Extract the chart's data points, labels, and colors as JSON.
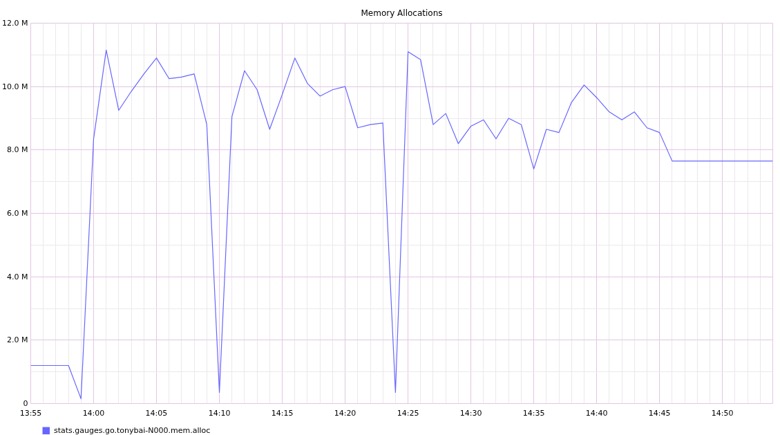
{
  "chart_data": {
    "type": "line",
    "title": "Memory Allocations",
    "x": [
      13.9167,
      13.9333,
      13.95,
      13.9667,
      13.9833,
      14,
      14.0167,
      14.0333,
      14.05,
      14.0667,
      14.0833,
      14.1,
      14.1167,
      14.1333,
      14.15,
      14.1667,
      14.1833,
      14.2,
      14.2167,
      14.2333,
      14.25,
      14.2667,
      14.2833,
      14.3,
      14.3167,
      14.3333,
      14.35,
      14.3667,
      14.3833,
      14.4,
      14.4167,
      14.4333,
      14.45,
      14.4667,
      14.4833,
      14.5,
      14.5167,
      14.5333,
      14.55,
      14.5667,
      14.5833,
      14.6,
      14.6167,
      14.6333,
      14.65,
      14.6667,
      14.6833,
      14.7,
      14.7167,
      14.7333,
      14.75,
      14.7667,
      14.7833,
      14.8,
      14.8167,
      14.8333,
      14.85,
      14.8667,
      14.8833,
      14.9
    ],
    "series": [
      {
        "name": "stats.gauges.go.tonybai-N000.mem.alloc",
        "color": "#6666ff",
        "values": [
          1200000,
          1200000,
          1200000,
          1200000,
          150000,
          8350000,
          11150000,
          9250000,
          9850000,
          10400000,
          10900000,
          10250000,
          10300000,
          10400000,
          8800000,
          350000,
          9050000,
          10500000,
          9900000,
          8650000,
          9750000,
          10900000,
          10100000,
          9700000,
          9900000,
          10000000,
          8700000,
          8800000,
          8850000,
          350000,
          11100000,
          10850000,
          8800000,
          9150000,
          8200000,
          8750000,
          8950000,
          8350000,
          9000000,
          8800000,
          7400000,
          8650000,
          8550000,
          9500000,
          10050000,
          9650000,
          9200000,
          8950000,
          9200000,
          8700000,
          8550000,
          7650000,
          7650000,
          7650000,
          7650000,
          7650000,
          7650000,
          7650000,
          7650000,
          7650000
        ]
      }
    ],
    "xlim": [
      13.9167,
      14.9
    ],
    "xticks": [
      {
        "value": 13.9167,
        "label": "13:55"
      },
      {
        "value": 13.9333,
        "label": null
      },
      {
        "value": 13.95,
        "label": null
      },
      {
        "value": 13.9667,
        "label": null
      },
      {
        "value": 13.9833,
        "label": null
      },
      {
        "value": 14,
        "label": "14:00"
      },
      {
        "value": 14.0167,
        "label": null
      },
      {
        "value": 14.0333,
        "label": null
      },
      {
        "value": 14.05,
        "label": null
      },
      {
        "value": 14.0667,
        "label": null
      },
      {
        "value": 14.0833,
        "label": "14:05"
      },
      {
        "value": 14.1,
        "label": null
      },
      {
        "value": 14.1167,
        "label": null
      },
      {
        "value": 14.1333,
        "label": null
      },
      {
        "value": 14.15,
        "label": null
      },
      {
        "value": 14.1667,
        "label": "14:10"
      },
      {
        "value": 14.1833,
        "label": null
      },
      {
        "value": 14.2,
        "label": null
      },
      {
        "value": 14.2167,
        "label": null
      },
      {
        "value": 14.2333,
        "label": null
      },
      {
        "value": 14.25,
        "label": "14:15"
      },
      {
        "value": 14.2667,
        "label": null
      },
      {
        "value": 14.2833,
        "label": null
      },
      {
        "value": 14.3,
        "label": null
      },
      {
        "value": 14.3167,
        "label": null
      },
      {
        "value": 14.3333,
        "label": "14:20"
      },
      {
        "value": 14.35,
        "label": null
      },
      {
        "value": 14.3667,
        "label": null
      },
      {
        "value": 14.3833,
        "label": null
      },
      {
        "value": 14.4,
        "label": null
      },
      {
        "value": 14.4167,
        "label": "14:25"
      },
      {
        "value": 14.4333,
        "label": null
      },
      {
        "value": 14.45,
        "label": null
      },
      {
        "value": 14.4667,
        "label": null
      },
      {
        "value": 14.4833,
        "label": null
      },
      {
        "value": 14.5,
        "label": "14:30"
      },
      {
        "value": 14.5167,
        "label": null
      },
      {
        "value": 14.5333,
        "label": null
      },
      {
        "value": 14.55,
        "label": null
      },
      {
        "value": 14.5667,
        "label": null
      },
      {
        "value": 14.5833,
        "label": "14:35"
      },
      {
        "value": 14.6,
        "label": null
      },
      {
        "value": 14.6167,
        "label": null
      },
      {
        "value": 14.6333,
        "label": null
      },
      {
        "value": 14.65,
        "label": null
      },
      {
        "value": 14.6667,
        "label": "14:40"
      },
      {
        "value": 14.6833,
        "label": null
      },
      {
        "value": 14.7,
        "label": null
      },
      {
        "value": 14.7167,
        "label": null
      },
      {
        "value": 14.7333,
        "label": null
      },
      {
        "value": 14.75,
        "label": "14:45"
      },
      {
        "value": 14.7667,
        "label": null
      },
      {
        "value": 14.7833,
        "label": null
      },
      {
        "value": 14.8,
        "label": null
      },
      {
        "value": 14.8167,
        "label": null
      },
      {
        "value": 14.8333,
        "label": "14:50"
      },
      {
        "value": 14.85,
        "label": null
      },
      {
        "value": 14.8667,
        "label": null
      },
      {
        "value": 14.8833,
        "label": null
      },
      {
        "value": 14.9,
        "label": null
      }
    ],
    "ylim": [
      0,
      12000000
    ],
    "yticks": [
      0,
      {
        "value": 1000000,
        "label": null
      },
      {
        "value": 2000000,
        "label": "2.0 M"
      },
      {
        "value": 3000000,
        "label": null
      },
      {
        "value": 4000000,
        "label": "4.0 M"
      },
      {
        "value": 5000000,
        "label": null
      },
      {
        "value": 6000000,
        "label": "6.0 M"
      },
      {
        "value": 7000000,
        "label": null
      },
      {
        "value": 8000000,
        "label": "8.0 M"
      },
      {
        "value": 9000000,
        "label": null
      },
      {
        "value": 10000000,
        "label": "10.0 M"
      },
      {
        "value": 11000000,
        "label": null
      },
      {
        "value": 12000000,
        "label": "12.0 M"
      }
    ],
    "grid": true,
    "legend": "bottom left",
    "line_style": "solid"
  }
}
